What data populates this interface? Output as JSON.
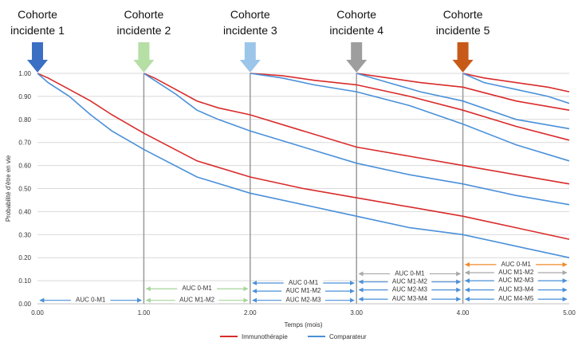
{
  "chart_data": {
    "type": "line",
    "xlabel": "Temps (mois)",
    "ylabel": "Probabilité d'être en vie",
    "xlim": [
      0,
      5
    ],
    "ylim": [
      0,
      1
    ],
    "x_ticks": [
      "0.00",
      "1.00",
      "2.00",
      "3.00",
      "4.00",
      "5.00"
    ],
    "y_ticks": [
      "0.00",
      "0.10",
      "0.20",
      "0.30",
      "0.40",
      "0.50",
      "0.60",
      "0.70",
      "0.80",
      "0.90",
      "1.00"
    ],
    "grid": true,
    "legend_position": "bottom",
    "legend": [
      {
        "name": "Immunothérapie",
        "color": "#d92b2b"
      },
      {
        "name": "Comparateur",
        "color": "#4a90d9"
      }
    ],
    "cohorts": [
      {
        "label": "Cohorte incidente 1",
        "start": 0,
        "arrow_color": "#3a6fc4",
        "series": [
          {
            "name": "Immunothérapie",
            "x": [
              0,
              0.1,
              0.3,
              0.5,
              0.7,
              1,
              1.5,
              2,
              2.5,
              3,
              3.5,
              4,
              4.5,
              5
            ],
            "y": [
              1.0,
              0.98,
              0.93,
              0.88,
              0.82,
              0.74,
              0.62,
              0.55,
              0.5,
              0.46,
              0.42,
              0.38,
              0.33,
              0.28
            ]
          },
          {
            "name": "Comparateur",
            "x": [
              0,
              0.1,
              0.3,
              0.5,
              0.7,
              1,
              1.5,
              2,
              2.5,
              3,
              3.5,
              4,
              4.5,
              5
            ],
            "y": [
              1.0,
              0.96,
              0.9,
              0.82,
              0.75,
              0.67,
              0.55,
              0.48,
              0.43,
              0.38,
              0.33,
              0.3,
              0.25,
              0.2
            ]
          }
        ]
      },
      {
        "label": "Cohorte incidente 2",
        "start": 1,
        "arrow_color": "#b5dfa5",
        "series": [
          {
            "name": "Immunothérapie",
            "x": [
              1,
              1.1,
              1.3,
              1.5,
              1.7,
              2,
              2.5,
              3,
              3.5,
              4,
              4.5,
              5
            ],
            "y": [
              1.0,
              0.98,
              0.93,
              0.88,
              0.85,
              0.82,
              0.75,
              0.68,
              0.64,
              0.6,
              0.56,
              0.52
            ]
          },
          {
            "name": "Comparateur",
            "x": [
              1,
              1.1,
              1.3,
              1.5,
              1.7,
              2,
              2.5,
              3,
              3.5,
              4,
              4.5,
              5
            ],
            "y": [
              1.0,
              0.97,
              0.91,
              0.84,
              0.8,
              0.75,
              0.68,
              0.61,
              0.56,
              0.52,
              0.47,
              0.43
            ]
          }
        ]
      },
      {
        "label": "Cohorte incidente 3",
        "start": 2,
        "arrow_color": "#9cc5ea",
        "series": [
          {
            "name": "Immunothérapie",
            "x": [
              2,
              2.3,
              2.6,
              3,
              3.5,
              4,
              4.5,
              5
            ],
            "y": [
              1.0,
              0.99,
              0.97,
              0.95,
              0.9,
              0.84,
              0.77,
              0.71
            ]
          },
          {
            "name": "Comparateur",
            "x": [
              2,
              2.3,
              2.6,
              3,
              3.5,
              4,
              4.5,
              5
            ],
            "y": [
              1.0,
              0.98,
              0.95,
              0.92,
              0.86,
              0.78,
              0.69,
              0.62
            ]
          }
        ]
      },
      {
        "label": "Cohorte incidente 4",
        "start": 3,
        "arrow_color": "#9e9e9e",
        "series": [
          {
            "name": "Immunothérapie",
            "x": [
              3,
              3.3,
              3.6,
              4,
              4.5,
              5
            ],
            "y": [
              1.0,
              0.98,
              0.96,
              0.94,
              0.88,
              0.84
            ]
          },
          {
            "name": "Comparateur",
            "x": [
              3,
              3.3,
              3.6,
              4,
              4.5,
              5
            ],
            "y": [
              1.0,
              0.96,
              0.92,
              0.88,
              0.8,
              0.76
            ]
          }
        ]
      },
      {
        "label": "Cohorte incidente 5",
        "start": 4,
        "arrow_color": "#c85a19",
        "series": [
          {
            "name": "Immunothérapie",
            "x": [
              4,
              4.2,
              4.5,
              4.8,
              5
            ],
            "y": [
              1.0,
              0.98,
              0.96,
              0.94,
              0.92
            ]
          },
          {
            "name": "Comparateur",
            "x": [
              4,
              4.2,
              4.5,
              4.8,
              5
            ],
            "y": [
              1.0,
              0.96,
              0.93,
              0.9,
              0.87
            ]
          }
        ]
      }
    ],
    "auc_bands": [
      {
        "label": "AUC 0-M1",
        "x0": 0,
        "x1": 1,
        "y": 0.015,
        "color": "#4a90d9"
      },
      {
        "label": "AUC 0-M1",
        "x0": 1,
        "x1": 2,
        "y": 0.065,
        "color": "#a6d49a"
      },
      {
        "label": "AUC M1-M2",
        "x0": 1,
        "x1": 2,
        "y": 0.015,
        "color": "#a6d49a"
      },
      {
        "label": "AUC 0-M1",
        "x0": 2,
        "x1": 3,
        "y": 0.09,
        "color": "#4a90d9"
      },
      {
        "label": "AUC M1-M2",
        "x0": 2,
        "x1": 3,
        "y": 0.055,
        "color": "#4a90d9"
      },
      {
        "label": "AUC M2-M3",
        "x0": 2,
        "x1": 3,
        "y": 0.015,
        "color": "#4a90d9"
      },
      {
        "label": "AUC 0-M1",
        "x0": 3,
        "x1": 4,
        "y": 0.13,
        "color": "#a8a8a8"
      },
      {
        "label": "AUC M1-M2",
        "x0": 3,
        "x1": 4,
        "y": 0.095,
        "color": "#4a90d9"
      },
      {
        "label": "AUC M2-M3",
        "x0": 3,
        "x1": 4,
        "y": 0.06,
        "color": "#4a90d9"
      },
      {
        "label": "AUC M3-M4",
        "x0": 3,
        "x1": 4,
        "y": 0.02,
        "color": "#4a90d9"
      },
      {
        "label": "AUC 0-M1",
        "x0": 4,
        "x1": 5,
        "y": 0.17,
        "color": "#f08a2c"
      },
      {
        "label": "AUC M1-M2",
        "x0": 4,
        "x1": 5,
        "y": 0.135,
        "color": "#a8a8a8"
      },
      {
        "label": "AUC M2-M3",
        "x0": 4,
        "x1": 5,
        "y": 0.1,
        "color": "#4a90d9"
      },
      {
        "label": "AUC M3-M4",
        "x0": 4,
        "x1": 5,
        "y": 0.06,
        "color": "#4a90d9"
      },
      {
        "label": "AUC M4-M5",
        "x0": 4,
        "x1": 5,
        "y": 0.02,
        "color": "#4a90d9"
      }
    ]
  }
}
